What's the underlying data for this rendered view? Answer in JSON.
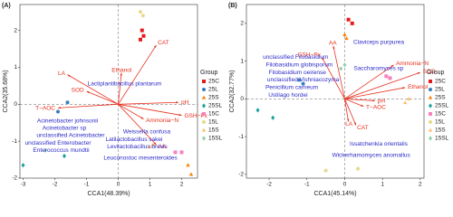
{
  "chart_data": [
    {
      "type": "biplot",
      "panel_label": "(A)",
      "x_label": "CCA1(48.39%)",
      "y_label": "CCA2(35.68%)",
      "xlim": [
        -3.1,
        2.5
      ],
      "ylim": [
        -2.0,
        2.7
      ],
      "xticks": [
        -3,
        -2,
        -1,
        0,
        1,
        2
      ],
      "yticks": [
        -2,
        -1,
        0,
        1,
        2
      ],
      "legend_title": "Group",
      "arrow_color": "#e8301e",
      "species_color": "#2b2bc8",
      "arrows": [
        {
          "name": "CAT",
          "x": 1.2,
          "y": 1.6
        },
        {
          "name": "Ethanol",
          "x": 0.1,
          "y": 0.85
        },
        {
          "name": "LA",
          "x": -1.6,
          "y": 0.8
        },
        {
          "name": "SOD",
          "x": -1.0,
          "y": 0.35
        },
        {
          "name": "T−AOC",
          "x": -1.9,
          "y": -0.1
        },
        {
          "name": "pH",
          "x": 1.9,
          "y": 0.05
        },
        {
          "name": "GSH−Px",
          "x": 2.0,
          "y": -0.3
        },
        {
          "name": "Ammonia−N",
          "x": 0.8,
          "y": -0.4
        },
        {
          "name": "AA",
          "x": 1.2,
          "y": -1.1
        }
      ],
      "species": [
        {
          "name": "Lactiplantibacillus plantarum",
          "x": 0.2,
          "y": 0.55
        },
        {
          "name": "Acinetobacter johnsonii",
          "x": -1.6,
          "y": -0.45
        },
        {
          "name": "Acinetobacter sp",
          "x": -1.7,
          "y": -0.65
        },
        {
          "name": "unclassified Acinetobacter",
          "x": -1.5,
          "y": -0.85
        },
        {
          "name": "unclassified Enterobacter",
          "x": -1.9,
          "y": -1.05
        },
        {
          "name": "Enterococcus mundtii",
          "x": -1.8,
          "y": -1.25
        },
        {
          "name": "Weissella confusa",
          "x": 0.9,
          "y": -0.75
        },
        {
          "name": "Latilactobacillus sakei",
          "x": 0.5,
          "y": -0.95
        },
        {
          "name": "Levilactobacillus brevis",
          "x": 0.6,
          "y": -1.15
        },
        {
          "name": "Leuconostoc mesenteroides",
          "x": 0.7,
          "y": -1.45
        }
      ],
      "series": [
        {
          "name": "25C",
          "color": "#e41a1c",
          "marker": "square",
          "x": [
            0.75,
            0.8,
            0.7
          ],
          "y": [
            2.0,
            1.85,
            1.75
          ]
        },
        {
          "name": "25L",
          "color": "#377eb8",
          "marker": "circle",
          "x": [
            -1.9,
            -1.6
          ],
          "y": [
            -0.2,
            0.05
          ]
        },
        {
          "name": "25S",
          "color": "#ff7f00",
          "marker": "triangle",
          "x": [
            2.2,
            2.3
          ],
          "y": [
            -1.65,
            -1.9
          ]
        },
        {
          "name": "25SL",
          "color": "#1b9e9e",
          "marker": "diamond",
          "x": [
            -3.0,
            -1.7
          ],
          "y": [
            -1.65,
            -1.4
          ]
        },
        {
          "name": "15C",
          "color": "#f781bf",
          "marker": "square",
          "x": [
            1.8,
            2.0
          ],
          "y": [
            -1.3,
            -1.3
          ]
        },
        {
          "name": "15L",
          "color": "#e8d98a",
          "marker": "circle",
          "x": [
            0.7,
            0.78
          ],
          "y": [
            2.5,
            2.4
          ]
        },
        {
          "name": "15S",
          "color": "#fdbf6f",
          "marker": "triangle",
          "x": [
            1.0,
            1.1
          ],
          "y": [
            -1.15,
            -1.1
          ]
        },
        {
          "name": "15SL",
          "color": "#8fd1a8",
          "marker": "diamond",
          "x": [
            -2.3
          ],
          "y": [
            -1.25
          ]
        }
      ]
    },
    {
      "type": "biplot",
      "panel_label": "(B)",
      "x_label": "CCA1(45.14%)",
      "y_label": "CCA2(32.77%)",
      "xlim": [
        -2.6,
        2.1
      ],
      "ylim": [
        -2.1,
        2.5
      ],
      "xticks": [
        -2,
        -1,
        0,
        1,
        2
      ],
      "yticks": [
        -2,
        -1,
        0,
        1,
        2
      ],
      "legend_title": "Group",
      "arrow_color": "#e8301e",
      "species_color": "#2b2bc8",
      "arrows": [
        {
          "name": "Ammonia−N",
          "x": 1.3,
          "y": 0.9
        },
        {
          "name": "SOD",
          "x": 2.0,
          "y": 0.7
        },
        {
          "name": "Ethanol",
          "x": 1.6,
          "y": 0.3
        },
        {
          "name": "pH",
          "x": 0.8,
          "y": -0.05
        },
        {
          "name": "T−AOC",
          "x": 0.5,
          "y": -0.2
        },
        {
          "name": "CAT",
          "x": 0.3,
          "y": -0.7
        },
        {
          "name": "LA",
          "x": 0.1,
          "y": -0.6
        },
        {
          "name": "AA",
          "x": -0.3,
          "y": 1.4
        },
        {
          "name": "GSH−Px",
          "x": -0.6,
          "y": 1.1
        }
      ],
      "species": [
        {
          "name": "unclassified Filobasidium",
          "x": -1.3,
          "y": 1.1
        },
        {
          "name": "Filobasidium globisporum",
          "x": -1.2,
          "y": 0.9
        },
        {
          "name": "Filobasidium oeirense",
          "x": -1.25,
          "y": 0.7
        },
        {
          "name": "unclassified Vishniacozyma",
          "x": -1.1,
          "y": 0.5
        },
        {
          "name": "Penicillium carneum",
          "x": -1.4,
          "y": 0.3
        },
        {
          "name": "Ustilago hordei",
          "x": -1.5,
          "y": 0.1
        },
        {
          "name": "Claviceps purpurea",
          "x": 0.9,
          "y": 1.5
        },
        {
          "name": "Saccharomyces sp",
          "x": 0.9,
          "y": 0.8
        },
        {
          "name": "Issatchenkia orientalis",
          "x": 0.9,
          "y": -1.2
        },
        {
          "name": "Wickerhamomyces anomallus",
          "x": 0.7,
          "y": -1.5
        }
      ],
      "series": [
        {
          "name": "25C",
          "color": "#e41a1c",
          "marker": "square",
          "x": [
            0.1,
            0.2
          ],
          "y": [
            2.1,
            2.0
          ]
        },
        {
          "name": "25L",
          "color": "#377eb8",
          "marker": "circle",
          "x": [
            -1.2,
            -1.1
          ],
          "y": [
            0.5,
            0.4
          ]
        },
        {
          "name": "25S",
          "color": "#ff7f00",
          "marker": "triangle",
          "x": [
            0.0,
            0.05
          ],
          "y": [
            1.7,
            1.6
          ]
        },
        {
          "name": "25SL",
          "color": "#1b9e9e",
          "marker": "diamond",
          "x": [
            -2.3,
            -1.9
          ],
          "y": [
            -0.3,
            -0.5
          ]
        },
        {
          "name": "15C",
          "color": "#f781bf",
          "marker": "square",
          "x": [
            1.1,
            1.2
          ],
          "y": [
            0.6,
            0.55
          ]
        },
        {
          "name": "15L",
          "color": "#e8d98a",
          "marker": "circle",
          "x": [
            -0.5,
            0.35
          ],
          "y": [
            -1.9,
            -1.85
          ]
        },
        {
          "name": "15S",
          "color": "#fdbf6f",
          "marker": "triangle",
          "x": [
            1.6,
            1.7
          ],
          "y": [
            -0.1,
            0.0
          ]
        },
        {
          "name": "15SL",
          "color": "#8fd1a8",
          "marker": "diamond",
          "x": [
            0.0,
            -0.1
          ],
          "y": [
            0.9,
            0.8
          ]
        }
      ]
    }
  ]
}
